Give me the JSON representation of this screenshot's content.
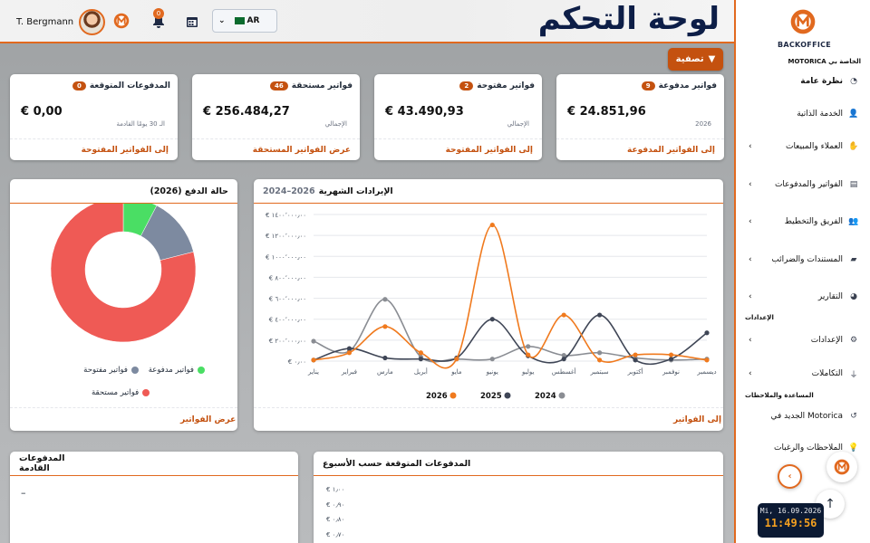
{
  "header": {
    "user_name": "T. Bergmann",
    "notification_count": "0",
    "language": "AR",
    "page_title": "لوحة التحكم"
  },
  "filter_label": "تصفية",
  "kpis": [
    {
      "title": "فواتير مدفوعة",
      "count": "9",
      "value": "€ 24.851,96",
      "sub": "2026",
      "link": "إلى الفواتير المدفوعة"
    },
    {
      "title": "فواتير مفتوحة",
      "count": "2",
      "value": "€ 43.490,93",
      "sub": "الإجمالي",
      "link": "إلى الفواتير المفتوحة"
    },
    {
      "title": "فواتير مستحقة",
      "count": "46",
      "value": "€ 256.484,27",
      "sub": "الإجمالي",
      "link": "عرض الفواتير المستحقة"
    },
    {
      "title": "المدفوعات المتوقعة",
      "count": "0",
      "value": "€ 0,00",
      "sub": "الـ 30 يومًا القادمة",
      "link": "إلى الفواتير المفتوحة"
    }
  ],
  "payment_status": {
    "title": "حالة الدفع (2026)",
    "link": "عرض الفواتير",
    "legend": [
      {
        "name": "فواتير مدفوعة",
        "color": "#4ade64"
      },
      {
        "name": "فواتير مفتوحة",
        "color": "#7d8aa0"
      },
      {
        "name": "فواتير مستحقة",
        "color": "#ef5a55"
      }
    ]
  },
  "revenue": {
    "title": "الإيرادات الشهرية",
    "range": "2024–2026",
    "link": "إلى الفواتير"
  },
  "upcoming": {
    "title": "المدفوعات القادمة",
    "empty": "–"
  },
  "weekly": {
    "title": "المدفوعات المتوقعة حسب الأسبوع",
    "ticks": [
      "€ ١٫٠٠",
      "€ ٠٫٩٠",
      "€ ٠٫٨٠",
      "€ ٠٫٧٠"
    ]
  },
  "chart_data": [
    {
      "type": "pie",
      "title": "حالة الدفع (2026)",
      "labels": [
        "فواتير مدفوعة",
        "فواتير مفتوحة",
        "فواتير مستحقة"
      ],
      "values": [
        24851.96,
        43490.93,
        256484.27
      ],
      "colors": [
        "#4ade64",
        "#7d8aa0",
        "#ef5a55"
      ],
      "legend": "bottom"
    },
    {
      "type": "line",
      "title": "الإيرادات الشهرية",
      "categories": [
        "يناير",
        "فبراير",
        "مارس",
        "أبريل",
        "مايو",
        "يونيو",
        "يوليو",
        "أغسطس",
        "سبتمبر",
        "أكتوبر",
        "نوفمبر",
        "ديسمبر"
      ],
      "y_ticks": [
        "€ ٠٫٠٠",
        "€ ٢٠٠٬٠٠٠٫٠٠",
        "€ ٤٠٠٬٠٠٠٫٠٠",
        "€ ٦٠٠٬٠٠٠٫٠٠",
        "€ ٨٠٠٬٠٠٠٫٠٠",
        "€ ١٠٠٠٬٠٠٠٫٠٠",
        "€ ١٢٠٠٬٠٠٠٫٠٠",
        "€ ١٤٠٠٬٠٠٠٫٠٠"
      ],
      "ylim": [
        0,
        1400000
      ],
      "series": [
        {
          "name": "2024",
          "color": "#8a8d93",
          "values": [
            190000,
            95000,
            590000,
            40000,
            20000,
            20000,
            140000,
            55000,
            80000,
            30000,
            10000,
            20000
          ]
        },
        {
          "name": "2025",
          "color": "#3f4656",
          "values": [
            10000,
            120000,
            30000,
            20000,
            30000,
            400000,
            50000,
            20000,
            440000,
            10000,
            20000,
            270000
          ]
        },
        {
          "name": "2026",
          "color": "#f07a1e",
          "values": [
            10000,
            80000,
            330000,
            80000,
            20000,
            1300000,
            60000,
            440000,
            10000,
            60000,
            60000,
            10000
          ]
        }
      ],
      "legend": "bottom",
      "grid": true
    }
  ],
  "sidebar": {
    "brand": "BACKOFFICE",
    "subtitle": "MOTORICA الخاصة بي",
    "items": [
      {
        "label": "نظرة عامة"
      },
      {
        "label": "الخدمة الذاتية"
      },
      {
        "label": "العملاء والمبيعات"
      },
      {
        "label": "الفواتير والمدفوعات"
      },
      {
        "label": "الفريق والتخطيط"
      },
      {
        "label": "المستندات والضرائب"
      },
      {
        "label": "التقارير"
      }
    ],
    "section_settings": "الإعدادات",
    "settings_items": [
      {
        "label": "الإعدادات"
      },
      {
        "label": "التكاملات"
      }
    ],
    "section_help": "المساعدة والملاحظات",
    "help_items": [
      {
        "label": "الجديد في Motorica"
      },
      {
        "label": "الملاحظات والرغبات"
      }
    ]
  },
  "clock": {
    "date": "Mi, 16.09.2026",
    "time": "11:49:56"
  }
}
